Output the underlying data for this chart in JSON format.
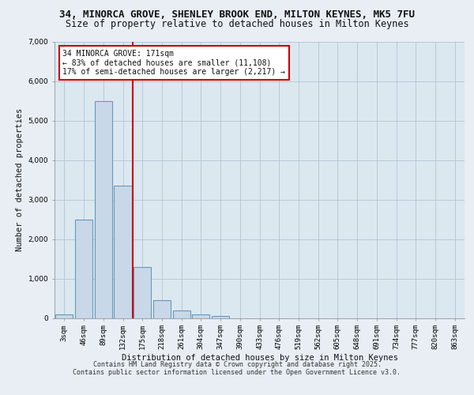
{
  "title_line1": "34, MINORCA GROVE, SHENLEY BROOK END, MILTON KEYNES, MK5 7FU",
  "title_line2": "Size of property relative to detached houses in Milton Keynes",
  "xlabel": "Distribution of detached houses by size in Milton Keynes",
  "ylabel": "Number of detached properties",
  "bar_labels": [
    "3sqm",
    "46sqm",
    "89sqm",
    "132sqm",
    "175sqm",
    "218sqm",
    "261sqm",
    "304sqm",
    "347sqm",
    "390sqm",
    "433sqm",
    "476sqm",
    "519sqm",
    "562sqm",
    "605sqm",
    "648sqm",
    "691sqm",
    "734sqm",
    "777sqm",
    "820sqm",
    "863sqm"
  ],
  "bar_values": [
    100,
    2500,
    5500,
    3350,
    1300,
    450,
    200,
    100,
    50,
    0,
    0,
    0,
    0,
    0,
    0,
    0,
    0,
    0,
    0,
    0,
    0
  ],
  "bar_color": "#c8d8e8",
  "bar_edge_color": "#6699bb",
  "vline_x": 3.5,
  "vline_color": "#cc0000",
  "annotation_text": "34 MINORCA GROVE: 171sqm\n← 83% of detached houses are smaller (11,108)\n17% of semi-detached houses are larger (2,217) →",
  "annotation_box_color": "#ffffff",
  "annotation_box_edge_color": "#cc0000",
  "ylim": [
    0,
    7000
  ],
  "yticks": [
    0,
    1000,
    2000,
    3000,
    4000,
    5000,
    6000,
    7000
  ],
  "background_color": "#e8eef4",
  "plot_bg_color": "#dce8f0",
  "grid_color": "#b0c4d4",
  "footer_line1": "Contains HM Land Registry data © Crown copyright and database right 2025.",
  "footer_line2": "Contains public sector information licensed under the Open Government Licence v3.0.",
  "title_fontsize": 9,
  "subtitle_fontsize": 8.5,
  "axis_label_fontsize": 7.5,
  "tick_fontsize": 6.5,
  "annotation_fontsize": 7
}
